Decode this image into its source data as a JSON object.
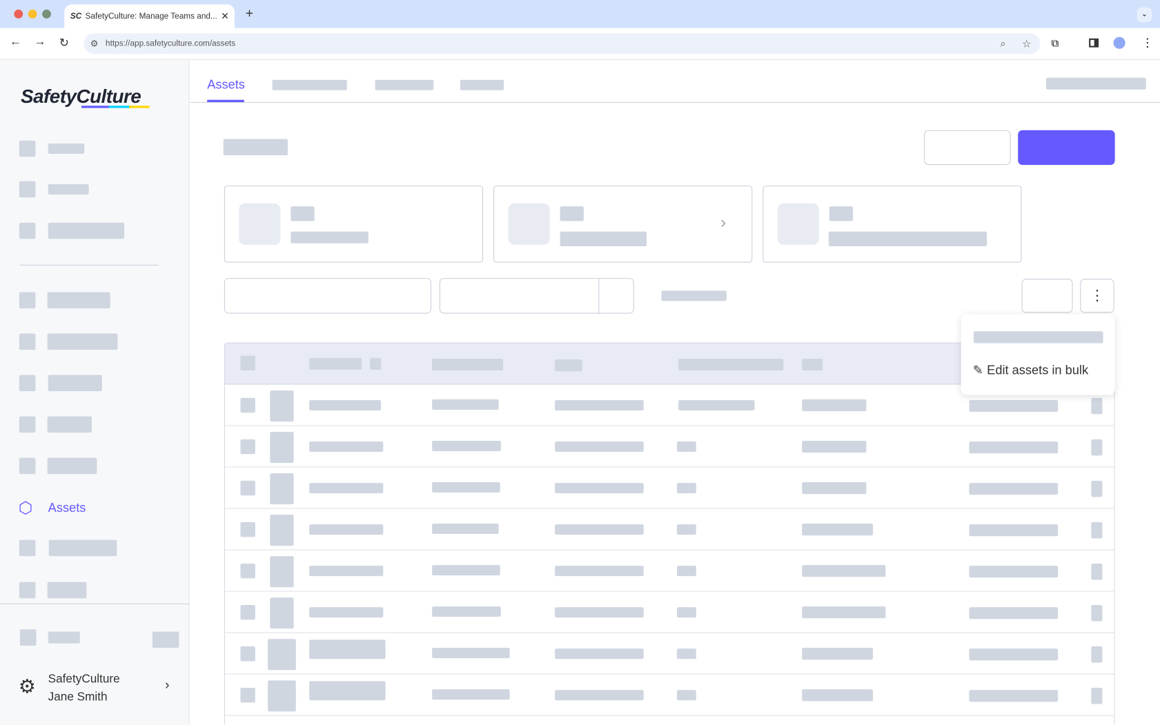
{
  "browser": {
    "tab_title": "SafetyCulture: Manage Teams and...",
    "url": "https://app.safetyculture.com/assets",
    "tab_icon": "SC"
  },
  "sidebar": {
    "logo": "SafetyCulture",
    "active_item": "Assets",
    "org": "SafetyCulture",
    "user": "Jane Smith"
  },
  "header": {
    "active_tab": "Assets"
  },
  "menu": {
    "edit_bulk": "Edit assets in bulk"
  },
  "colors": {
    "accent": "#6559ff",
    "skeleton": "#d0d6e0"
  }
}
